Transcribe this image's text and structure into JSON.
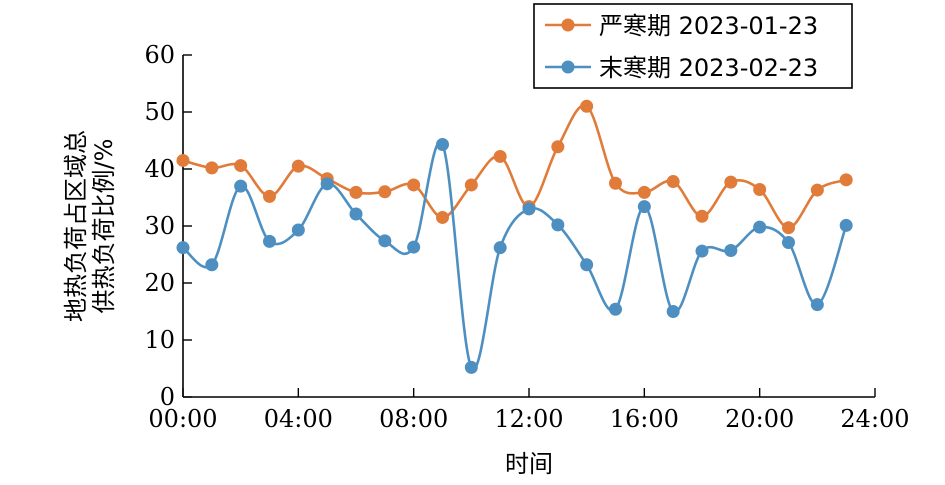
{
  "chart_data": {
    "type": "line",
    "title": "",
    "xlabel": "时间",
    "ylabel_lines": [
      "地热负荷占区域总",
      "供热负荷比例/%"
    ],
    "xlim": [
      0,
      24
    ],
    "ylim": [
      0,
      60
    ],
    "x_ticks": [
      0,
      4,
      8,
      12,
      16,
      20,
      24
    ],
    "x_tick_labels": [
      "00:00",
      "04:00",
      "08:00",
      "12:00",
      "16:00",
      "20:00",
      "24:00"
    ],
    "y_ticks": [
      0,
      10,
      20,
      30,
      40,
      50,
      60
    ],
    "y_tick_labels": [
      "0",
      "10",
      "20",
      "30",
      "40",
      "50",
      "60"
    ],
    "x": [
      0,
      1,
      2,
      3,
      4,
      5,
      6,
      7,
      8,
      9,
      10,
      11,
      12,
      13,
      14,
      15,
      16,
      17,
      18,
      19,
      20,
      21,
      22,
      23
    ],
    "series": [
      {
        "name": "严寒期 2023-01-23",
        "color": "#e07b39",
        "values": [
          41.5,
          40.2,
          40.6,
          35.2,
          40.5,
          38.3,
          35.9,
          36.0,
          37.2,
          31.5,
          37.2,
          42.2,
          33.4,
          43.9,
          51.0,
          37.5,
          35.9,
          37.8,
          31.7,
          37.7,
          36.4,
          29.7,
          36.3,
          38.1
        ]
      },
      {
        "name": "末寒期 2023-02-23",
        "color": "#4d8fc1",
        "values": [
          26.2,
          23.2,
          37.0,
          27.3,
          29.3,
          37.4,
          32.1,
          27.4,
          26.3,
          44.3,
          5.2,
          26.2,
          33.0,
          30.2,
          23.2,
          15.4,
          33.4,
          15.0,
          25.6,
          25.7,
          29.8,
          27.1,
          16.2,
          30.1
        ]
      }
    ],
    "legend_position": "top-right"
  }
}
